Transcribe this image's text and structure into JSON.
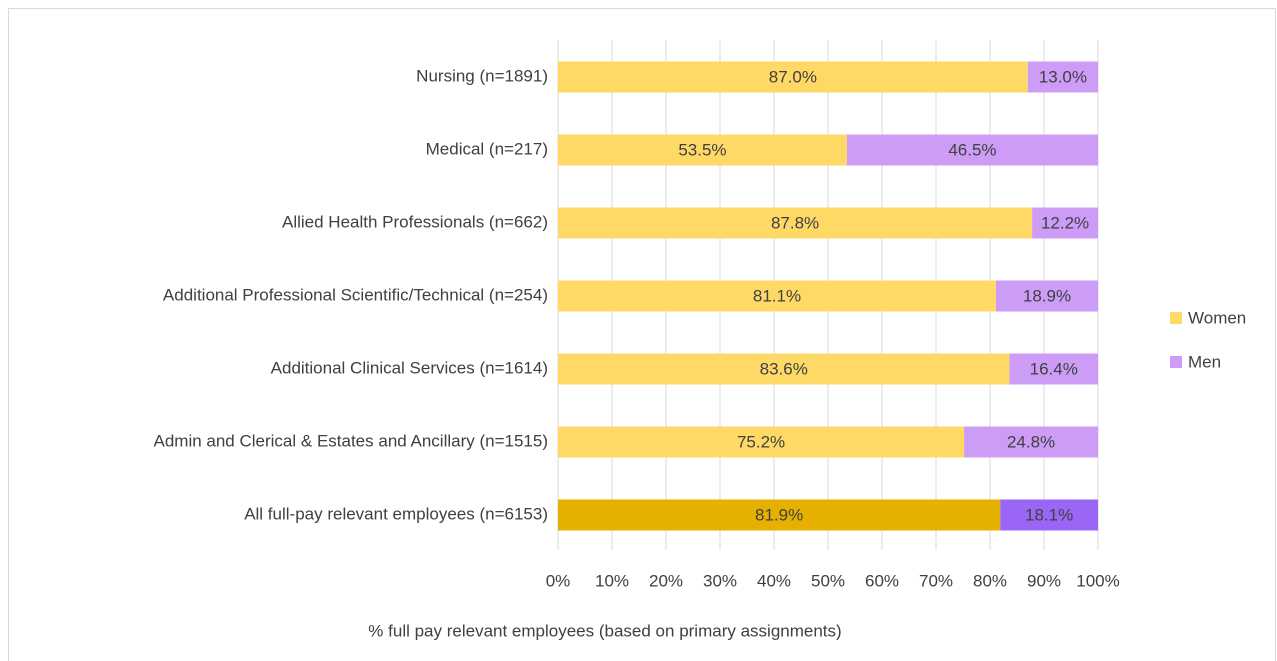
{
  "chart_data": {
    "type": "bar",
    "orientation": "horizontal",
    "stacked": true,
    "x_label": "% full pay relevant employees (based on primary assignments)",
    "categories": [
      "Nursing (n=1891)",
      "Medical (n=217)",
      "Allied Health Professionals (n=662)",
      "Additional Professional Scientific/Technical (n=254)",
      "Additional Clinical Services (n=1614)",
      "Admin and Clerical & Estates and Ancillary  (n=1515)",
      "All full-pay relevant employees (n=6153)"
    ],
    "series": [
      {
        "name": "Women",
        "color": "#ffd966",
        "colors": [
          "#ffd966",
          "#ffd966",
          "#ffd966",
          "#ffd966",
          "#ffd966",
          "#ffd966",
          "#e6b000"
        ],
        "values": [
          87.0,
          53.5,
          87.8,
          81.1,
          83.6,
          75.2,
          81.9
        ],
        "value_labels": [
          "87.0%",
          "53.5%",
          "87.8%",
          "81.1%",
          "83.6%",
          "75.2%",
          "81.9%"
        ]
      },
      {
        "name": "Men",
        "color": "#cc9cf7",
        "colors": [
          "#cc9cf7",
          "#cc9cf7",
          "#cc9cf7",
          "#cc9cf7",
          "#cc9cf7",
          "#cc9cf7",
          "#9966f5"
        ],
        "values": [
          13.0,
          46.5,
          12.2,
          18.9,
          16.4,
          24.8,
          18.1
        ],
        "value_labels": [
          "13.0%",
          "46.5%",
          "12.2%",
          "18.9%",
          "16.4%",
          "24.8%",
          "18.1%"
        ]
      }
    ],
    "xlim": [
      0,
      100
    ],
    "xticks": [
      {
        "value": 0,
        "label": "0%"
      },
      {
        "value": 10,
        "label": "10%"
      },
      {
        "value": 20,
        "label": "20%"
      },
      {
        "value": 30,
        "label": "30%"
      },
      {
        "value": 40,
        "label": "40%"
      },
      {
        "value": 50,
        "label": "50%"
      },
      {
        "value": 60,
        "label": "60%"
      },
      {
        "value": 70,
        "label": "70%"
      },
      {
        "value": 80,
        "label": "80%"
      },
      {
        "value": 90,
        "label": "90%"
      },
      {
        "value": 100,
        "label": "100%"
      }
    ],
    "grid": true,
    "legend": "right"
  }
}
